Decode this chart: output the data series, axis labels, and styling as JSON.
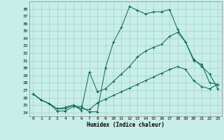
{
  "title": "",
  "xlabel": "Humidex (Indice chaleur)",
  "ylabel": "",
  "bg_color": "#c8eee8",
  "grid_color": "#a0d4c8",
  "line_color": "#006655",
  "spine_color": "#888888",
  "xlim": [
    -0.5,
    23.5
  ],
  "ylim": [
    23.5,
    39.0
  ],
  "xticks": [
    0,
    1,
    2,
    3,
    4,
    5,
    6,
    7,
    8,
    9,
    10,
    11,
    12,
    13,
    14,
    15,
    16,
    17,
    18,
    19,
    20,
    21,
    22,
    23
  ],
  "yticks": [
    24,
    25,
    26,
    27,
    28,
    29,
    30,
    31,
    32,
    33,
    34,
    35,
    36,
    37,
    38
  ],
  "line1_x": [
    0,
    1,
    2,
    3,
    4,
    5,
    6,
    7,
    8,
    9,
    10,
    11,
    12,
    13,
    14,
    15,
    16,
    17,
    18,
    19,
    20,
    21,
    22,
    23
  ],
  "line1_y": [
    26.5,
    25.7,
    25.2,
    24.2,
    24.2,
    24.8,
    24.8,
    24.1,
    24.1,
    30.0,
    33.5,
    35.5,
    38.3,
    37.8,
    37.3,
    37.6,
    37.6,
    37.9,
    35.2,
    33.5,
    31.2,
    30.2,
    29.2,
    27.2
  ],
  "line2_x": [
    0,
    1,
    2,
    3,
    4,
    5,
    6,
    7,
    8,
    9,
    10,
    11,
    12,
    13,
    14,
    15,
    16,
    17,
    18,
    19,
    20,
    21,
    22,
    23
  ],
  "line2_y": [
    26.5,
    25.7,
    25.2,
    24.5,
    24.5,
    25.0,
    24.3,
    29.5,
    26.8,
    27.2,
    28.2,
    29.2,
    30.2,
    31.5,
    32.3,
    32.8,
    33.2,
    34.3,
    34.8,
    33.5,
    31.0,
    30.5,
    28.0,
    27.8
  ],
  "line3_x": [
    0,
    1,
    2,
    3,
    4,
    5,
    6,
    7,
    8,
    9,
    10,
    11,
    12,
    13,
    14,
    15,
    16,
    17,
    18,
    19,
    20,
    21,
    22,
    23
  ],
  "line3_y": [
    26.5,
    25.7,
    25.2,
    24.5,
    24.7,
    25.0,
    24.5,
    24.4,
    25.3,
    25.8,
    26.3,
    26.8,
    27.3,
    27.8,
    28.3,
    28.8,
    29.3,
    29.8,
    30.2,
    29.8,
    28.3,
    27.5,
    27.2,
    27.8
  ],
  "tick_fontsize": 4.5,
  "xlabel_fontsize": 5.5,
  "marker": "+",
  "markersize": 2.5,
  "linewidth": 0.7
}
